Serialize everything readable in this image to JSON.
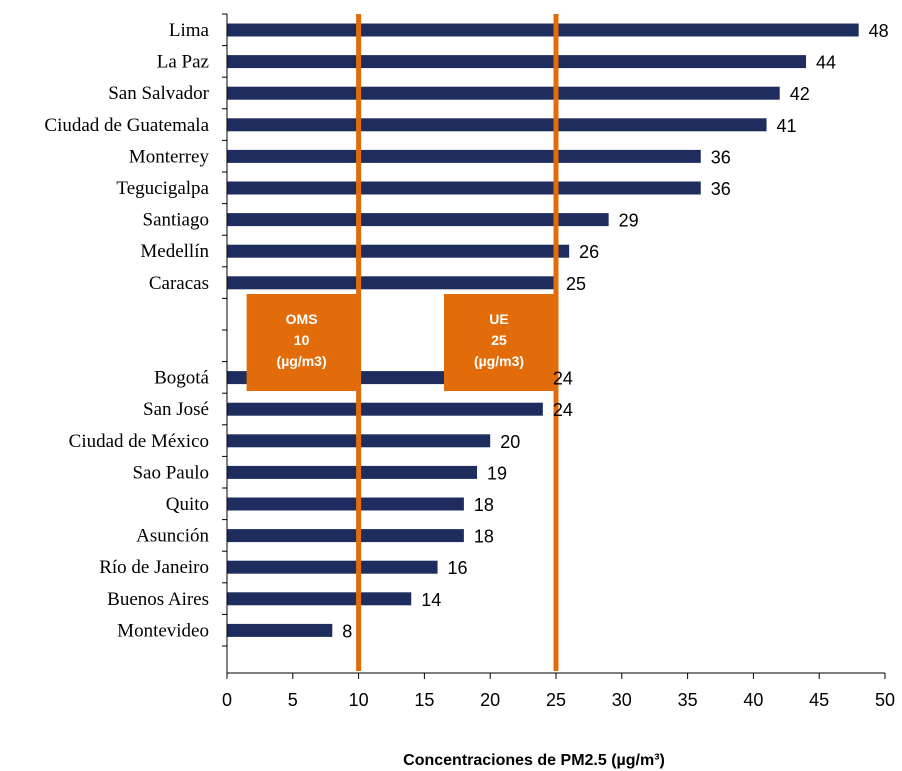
{
  "chart_data": {
    "type": "bar",
    "orientation": "horizontal",
    "categories": [
      "Lima",
      "La Paz",
      "San Salvador",
      "Ciudad de Guatemala",
      "Monterrey",
      "Tegucigalpa",
      "Santiago",
      "Medellín",
      "Caracas",
      "",
      "",
      "Bogotá",
      "San José",
      "Ciudad de México",
      "Sao Paulo",
      "Quito",
      "Asunción",
      "Río de Janeiro",
      "Buenos Aires",
      "Montevideo"
    ],
    "values": [
      48,
      44,
      42,
      41,
      36,
      36,
      29,
      26,
      25,
      null,
      null,
      24,
      24,
      20,
      19,
      18,
      18,
      16,
      14,
      8
    ],
    "xlim": [
      0,
      50
    ],
    "xticks": [
      0,
      5,
      10,
      15,
      20,
      25,
      30,
      35,
      40,
      45,
      50
    ],
    "xlabel": "Concentraciones de PM2.5  (µg/m³)",
    "ylabel": "",
    "title": "",
    "grid": false,
    "bar_color": "#1f2d5e",
    "reference_lines": [
      {
        "value": 10,
        "label_lines": [
          "OMS",
          "10",
          "(µg/m3)"
        ],
        "color": "#e36c0a"
      },
      {
        "value": 25,
        "label_lines": [
          "UE",
          "25",
          "(µg/m3)"
        ],
        "color": "#e36c0a"
      }
    ]
  }
}
